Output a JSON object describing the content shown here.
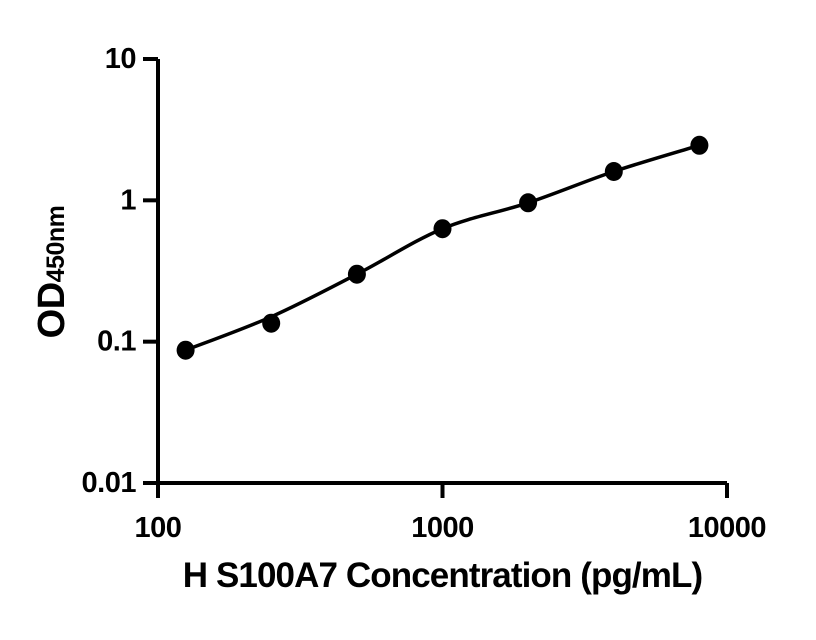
{
  "figure": {
    "background_color": "#ffffff"
  },
  "chart_data": {
    "type": "scatter",
    "title": "",
    "xlabel": "H S100A7 Concentration (pg/mL)",
    "ylabel": "OD450nm",
    "ylabel_main": "OD",
    "ylabel_sub": "450nm",
    "x_scale": "log10",
    "y_scale": "log10",
    "xlim": [
      100,
      10000
    ],
    "ylim": [
      0.01,
      10
    ],
    "x_ticks": [
      100,
      1000,
      10000
    ],
    "y_ticks": [
      10,
      1,
      0.1,
      0.01
    ],
    "grid": false,
    "legend": false,
    "axis_color": "#000000",
    "line_color": "#000000",
    "marker_color": "#000000",
    "marker_shape": "filled-circle",
    "points": [
      {
        "x": 125,
        "y": 0.087
      },
      {
        "x": 250,
        "y": 0.135
      },
      {
        "x": 500,
        "y": 0.3
      },
      {
        "x": 1000,
        "y": 0.63
      },
      {
        "x": 2000,
        "y": 0.96
      },
      {
        "x": 4000,
        "y": 1.6
      },
      {
        "x": 8000,
        "y": 2.45
      }
    ],
    "fit_curve_anchors": [
      {
        "x": 125,
        "y": 0.087
      },
      {
        "x": 250,
        "y": 0.15
      },
      {
        "x": 500,
        "y": 0.3
      },
      {
        "x": 1000,
        "y": 0.63
      },
      {
        "x": 2000,
        "y": 0.96
      },
      {
        "x": 4000,
        "y": 1.6
      },
      {
        "x": 8000,
        "y": 2.45
      }
    ]
  }
}
